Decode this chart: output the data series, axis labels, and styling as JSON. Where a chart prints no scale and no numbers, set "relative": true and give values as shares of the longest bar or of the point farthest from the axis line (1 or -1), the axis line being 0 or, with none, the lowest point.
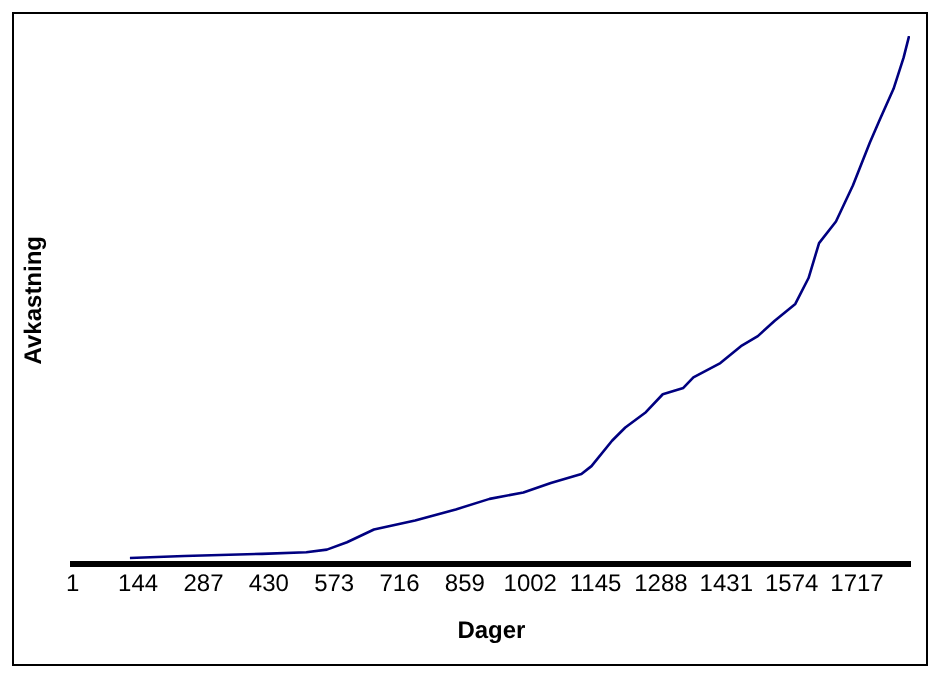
{
  "chart_data": {
    "type": "line",
    "xlabel": "Dager",
    "ylabel": "Avkastning",
    "relative": true,
    "legend": false,
    "grid": false,
    "marker": "none",
    "line_style": "solid",
    "xlim": [
      1,
      1833
    ],
    "xticks": [
      1,
      144,
      287,
      430,
      573,
      716,
      859,
      1002,
      1145,
      1288,
      1431,
      1574,
      1717
    ],
    "series": [
      {
        "color": "#000080",
        "x": [
          126,
          245,
          415,
          512,
          557,
          601,
          660,
          750,
          839,
          913,
          987,
          1047,
          1114,
          1136,
          1181,
          1210,
          1255,
          1292,
          1337,
          1359,
          1418,
          1463,
          1500,
          1537,
          1582,
          1611,
          1634,
          1671,
          1708,
          1745,
          1767,
          1797,
          1819,
          1831
        ],
        "values": [
          0.012,
          0.016,
          0.02,
          0.023,
          0.028,
          0.042,
          0.066,
          0.083,
          0.104,
          0.124,
          0.136,
          0.154,
          0.171,
          0.186,
          0.234,
          0.259,
          0.288,
          0.322,
          0.334,
          0.354,
          0.381,
          0.413,
          0.432,
          0.461,
          0.493,
          0.542,
          0.608,
          0.649,
          0.717,
          0.798,
          0.842,
          0.9,
          0.959,
          1.0
        ]
      }
    ]
  }
}
